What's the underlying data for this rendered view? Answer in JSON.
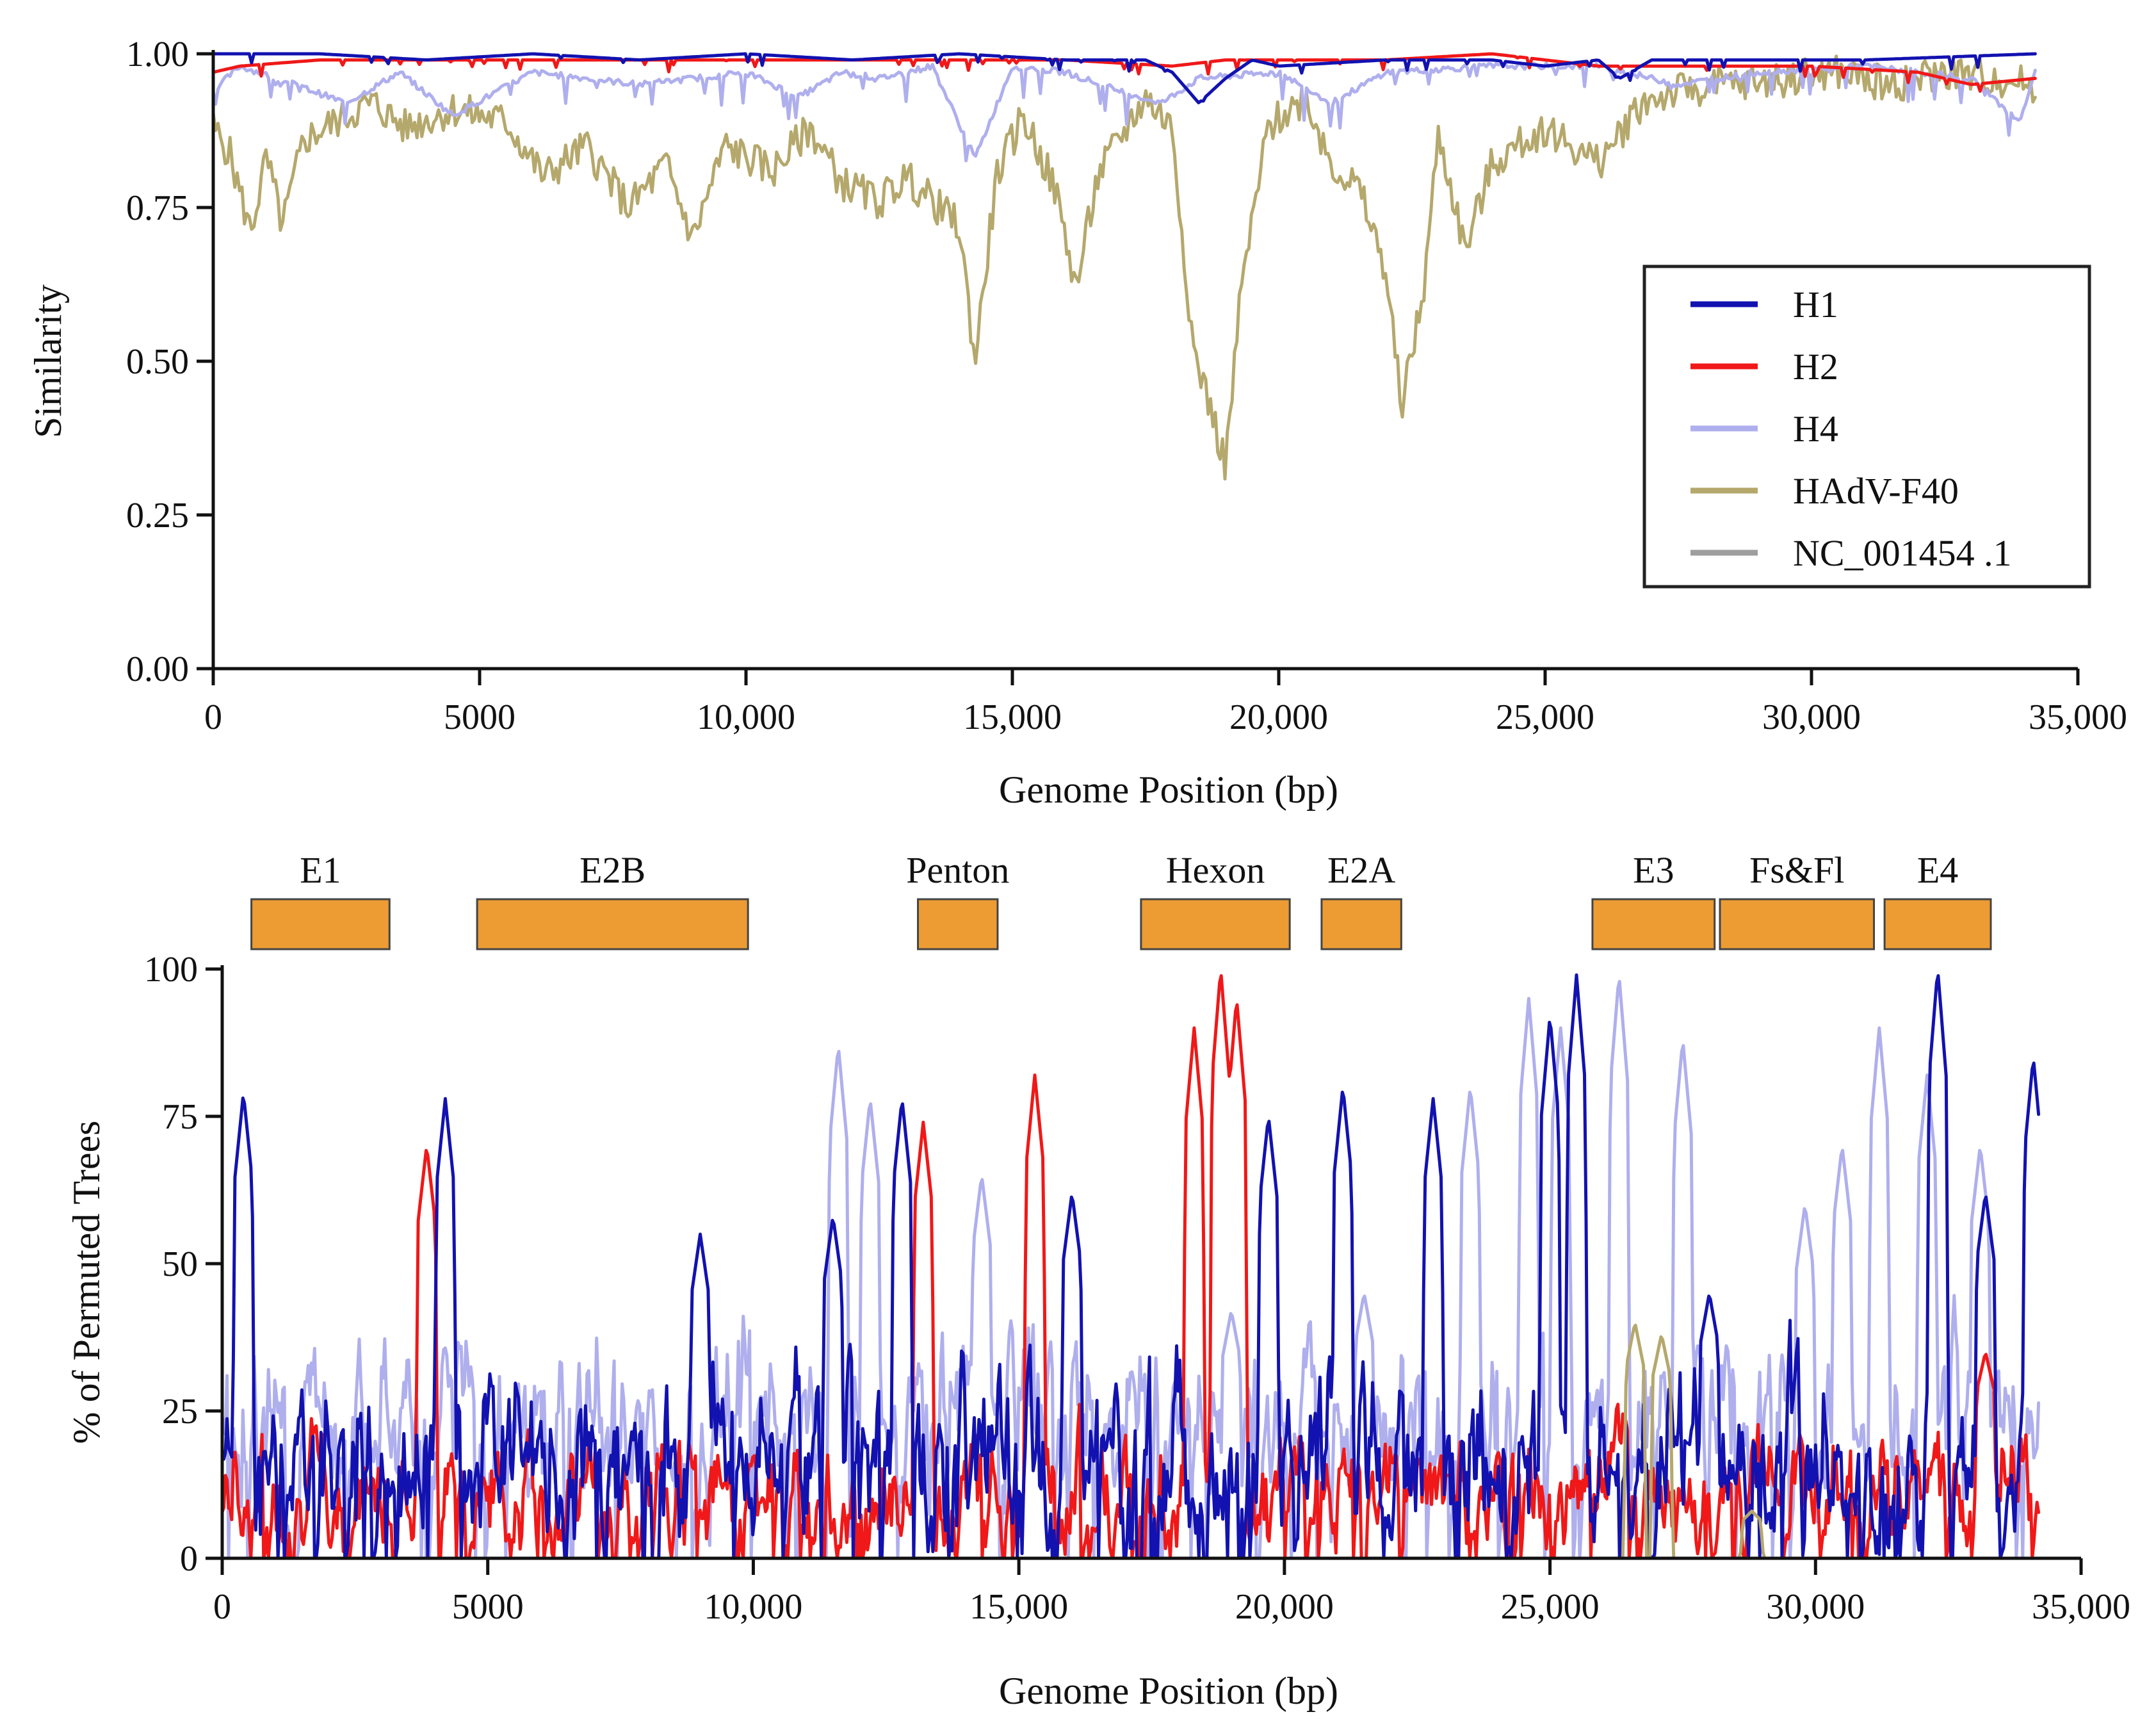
{
  "chart_data": [
    {
      "type": "line",
      "name": "similarity-plot",
      "title": "",
      "xlabel": "Genome Position (bp)",
      "ylabel": "Similarity",
      "xlim": [
        0,
        35000
      ],
      "ylim": [
        0,
        1.0
      ],
      "xticks": [
        0,
        5000,
        10000,
        15000,
        20000,
        25000,
        30000,
        35000
      ],
      "xtick_labels": [
        "0",
        "5000",
        "10,000",
        "15,000",
        "20,000",
        "25,000",
        "30,000",
        "35,000"
      ],
      "yticks": [
        0,
        0.25,
        0.5,
        0.75,
        1.0
      ],
      "ytick_labels": [
        "0.00",
        "0.25",
        "0.50",
        "0.75",
        "1.00"
      ],
      "legend_position": "right",
      "legend": [
        {
          "name": "H1",
          "color": "#1212B0"
        },
        {
          "name": "H2",
          "color": "#F01818"
        },
        {
          "name": "H4",
          "color": "#AFAFEE"
        },
        {
          "name": "HAdV-F40",
          "color": "#B5A86C"
        },
        {
          "name": "NC_001454 .1",
          "color": "#9E9E9E"
        }
      ],
      "series": [
        {
          "name": "H1",
          "color": "#1212B0",
          "x_end": 34200,
          "points": [
            [
              0,
              1.0
            ],
            [
              2000,
              1.0
            ],
            [
              4000,
              0.99
            ],
            [
              6000,
              1.0
            ],
            [
              8000,
              0.99
            ],
            [
              10000,
              1.0
            ],
            [
              12000,
              0.99
            ],
            [
              14000,
              1.0
            ],
            [
              16000,
              0.99
            ],
            [
              17500,
              0.99
            ],
            [
              18000,
              0.97
            ],
            [
              18500,
              0.92
            ],
            [
              19000,
              0.96
            ],
            [
              19500,
              0.99
            ],
            [
              20000,
              0.98
            ],
            [
              22000,
              0.99
            ],
            [
              24000,
              0.99
            ],
            [
              25000,
              0.98
            ],
            [
              26000,
              0.99
            ],
            [
              26400,
              0.96
            ],
            [
              27000,
              0.99
            ],
            [
              29000,
              0.99
            ],
            [
              31000,
              0.99
            ],
            [
              34200,
              1.0
            ]
          ]
        },
        {
          "name": "H2",
          "color": "#F01818",
          "x_end": 34200,
          "points": [
            [
              0,
              0.97
            ],
            [
              500,
              0.98
            ],
            [
              2000,
              0.99
            ],
            [
              4000,
              0.99
            ],
            [
              6000,
              0.99
            ],
            [
              8000,
              0.99
            ],
            [
              10000,
              0.99
            ],
            [
              12000,
              0.99
            ],
            [
              14000,
              0.99
            ],
            [
              16000,
              0.99
            ],
            [
              18000,
              0.98
            ],
            [
              19000,
              0.99
            ],
            [
              20000,
              0.99
            ],
            [
              22000,
              0.99
            ],
            [
              24000,
              1.0
            ],
            [
              26000,
              0.98
            ],
            [
              28000,
              0.98
            ],
            [
              30000,
              0.98
            ],
            [
              32000,
              0.97
            ],
            [
              33000,
              0.95
            ],
            [
              34200,
              0.96
            ]
          ]
        },
        {
          "name": "H4",
          "color": "#AFAFEE",
          "x_end": 34200,
          "points": [
            [
              0,
              0.94
            ],
            [
              500,
              0.98
            ],
            [
              1200,
              0.96
            ],
            [
              2500,
              0.92
            ],
            [
              3500,
              0.97
            ],
            [
              4500,
              0.9
            ],
            [
              6000,
              0.97
            ],
            [
              8000,
              0.95
            ],
            [
              9000,
              0.96
            ],
            [
              10000,
              0.97
            ],
            [
              11000,
              0.93
            ],
            [
              11800,
              0.97
            ],
            [
              12500,
              0.96
            ],
            [
              13500,
              0.98
            ],
            [
              14300,
              0.83
            ],
            [
              15000,
              0.98
            ],
            [
              16000,
              0.97
            ],
            [
              17000,
              0.94
            ],
            [
              17800,
              0.92
            ],
            [
              18500,
              0.96
            ],
            [
              20000,
              0.97
            ],
            [
              21000,
              0.92
            ],
            [
              22000,
              0.97
            ],
            [
              24000,
              0.98
            ],
            [
              26000,
              0.98
            ],
            [
              27500,
              0.95
            ],
            [
              29000,
              0.97
            ],
            [
              31000,
              0.98
            ],
            [
              33000,
              0.96
            ],
            [
              33900,
              0.89
            ],
            [
              34200,
              0.97
            ]
          ]
        },
        {
          "name": "HAdV-F40",
          "color": "#B5A86C",
          "x_end": 34200,
          "points": [
            [
              0,
              0.88
            ],
            [
              300,
              0.84
            ],
            [
              700,
              0.71
            ],
            [
              1000,
              0.83
            ],
            [
              1300,
              0.72
            ],
            [
              1700,
              0.86
            ],
            [
              2500,
              0.9
            ],
            [
              3000,
              0.92
            ],
            [
              3600,
              0.88
            ],
            [
              4500,
              0.91
            ],
            [
              5500,
              0.89
            ],
            [
              6200,
              0.8
            ],
            [
              7000,
              0.85
            ],
            [
              7800,
              0.75
            ],
            [
              8500,
              0.82
            ],
            [
              9000,
              0.7
            ],
            [
              9600,
              0.85
            ],
            [
              10500,
              0.81
            ],
            [
              11200,
              0.88
            ],
            [
              11800,
              0.79
            ],
            [
              12500,
              0.76
            ],
            [
              13000,
              0.8
            ],
            [
              13500,
              0.76
            ],
            [
              14000,
              0.72
            ],
            [
              14300,
              0.5
            ],
            [
              14700,
              0.8
            ],
            [
              15200,
              0.9
            ],
            [
              15800,
              0.78
            ],
            [
              16200,
              0.62
            ],
            [
              16600,
              0.8
            ],
            [
              17000,
              0.86
            ],
            [
              17500,
              0.93
            ],
            [
              18000,
              0.88
            ],
            [
              18400,
              0.52
            ],
            [
              18700,
              0.43
            ],
            [
              19000,
              0.33
            ],
            [
              19300,
              0.62
            ],
            [
              19800,
              0.88
            ],
            [
              20500,
              0.93
            ],
            [
              21000,
              0.82
            ],
            [
              21500,
              0.78
            ],
            [
              22000,
              0.65
            ],
            [
              22300,
              0.43
            ],
            [
              22700,
              0.6
            ],
            [
              23000,
              0.87
            ],
            [
              23500,
              0.68
            ],
            [
              24000,
              0.82
            ],
            [
              25000,
              0.88
            ],
            [
              26000,
              0.82
            ],
            [
              26800,
              0.92
            ],
            [
              27500,
              0.94
            ],
            [
              28500,
              0.95
            ],
            [
              29500,
              0.96
            ],
            [
              30500,
              0.97
            ],
            [
              31500,
              0.95
            ],
            [
              32500,
              0.97
            ],
            [
              33500,
              0.96
            ],
            [
              34200,
              0.95
            ]
          ]
        },
        {
          "name": "NC_001454 .1",
          "color": "#9E9E9E",
          "x_end": 34200,
          "points": []
        }
      ]
    },
    {
      "type": "line",
      "name": "bootscan-plot",
      "title": "",
      "xlabel": "Genome Position (bp)",
      "ylabel": "% of Permuted Trees",
      "xlim": [
        0,
        35000
      ],
      "ylim": [
        0,
        100
      ],
      "xticks": [
        0,
        5000,
        10000,
        15000,
        20000,
        25000,
        30000,
        35000
      ],
      "xtick_labels": [
        "0",
        "5000",
        "10,000",
        "15,000",
        "20,000",
        "25,000",
        "30,000",
        "35,000"
      ],
      "yticks": [
        0,
        25,
        50,
        75,
        100
      ],
      "ytick_labels": [
        "0",
        "25",
        "50",
        "75",
        "100"
      ],
      "genes": [
        {
          "label": "E1",
          "start": 550,
          "end": 3150
        },
        {
          "label": "E2B",
          "start": 4800,
          "end": 9900
        },
        {
          "label": "Penton",
          "start": 13100,
          "end": 14600
        },
        {
          "label": "Hexon",
          "start": 17300,
          "end": 20100
        },
        {
          "label": "E2A",
          "start": 20700,
          "end": 22200
        },
        {
          "label": "E3",
          "start": 25800,
          "end": 28100
        },
        {
          "label": "Fs&Fl",
          "start": 28200,
          "end": 31100
        },
        {
          "label": "E4",
          "start": 31300,
          "end": 33300
        }
      ],
      "series": [
        {
          "name": "H4",
          "color": "#AFAFEE",
          "x_end": 34200,
          "base": 22,
          "amp": 20,
          "seed": 3,
          "peaks": [
            [
              11600,
              87
            ],
            [
              12200,
              78
            ],
            [
              14300,
              65
            ],
            [
              19000,
              42
            ],
            [
              21500,
              45
            ],
            [
              23500,
              80
            ],
            [
              24600,
              95
            ],
            [
              25200,
              90
            ],
            [
              26300,
              99
            ],
            [
              27500,
              88
            ],
            [
              29800,
              60
            ],
            [
              30500,
              70
            ],
            [
              31200,
              90
            ],
            [
              32100,
              82
            ],
            [
              33100,
              70
            ]
          ]
        },
        {
          "name": "H2",
          "color": "#F01818",
          "x_end": 34200,
          "base": 10,
          "amp": 14,
          "seed": 7,
          "peaks": [
            [
              3850,
              70
            ],
            [
              13200,
              74
            ],
            [
              15300,
              82
            ],
            [
              18300,
              90
            ],
            [
              18800,
              100
            ],
            [
              19100,
              95
            ],
            [
              33200,
              35
            ]
          ]
        },
        {
          "name": "H1",
          "color": "#1212B0",
          "x_end": 34200,
          "base": 14,
          "amp": 22,
          "seed": 11,
          "peaks": [
            [
              400,
              79
            ],
            [
              4200,
              78
            ],
            [
              9000,
              55
            ],
            [
              11500,
              58
            ],
            [
              12800,
              78
            ],
            [
              16000,
              62
            ],
            [
              19700,
              75
            ],
            [
              21100,
              80
            ],
            [
              22800,
              78
            ],
            [
              25000,
              92
            ],
            [
              25500,
              99
            ],
            [
              28000,
              45
            ],
            [
              32300,
              100
            ],
            [
              33200,
              62
            ],
            [
              34100,
              85
            ]
          ]
        },
        {
          "name": "HAdV-F40",
          "color": "#B5A86C",
          "x_end": 34200,
          "base": 0,
          "amp": 0,
          "seed": 13,
          "peaks": [
            [
              26600,
              40
            ],
            [
              27100,
              38
            ],
            [
              28800,
              8
            ]
          ]
        }
      ]
    }
  ]
}
